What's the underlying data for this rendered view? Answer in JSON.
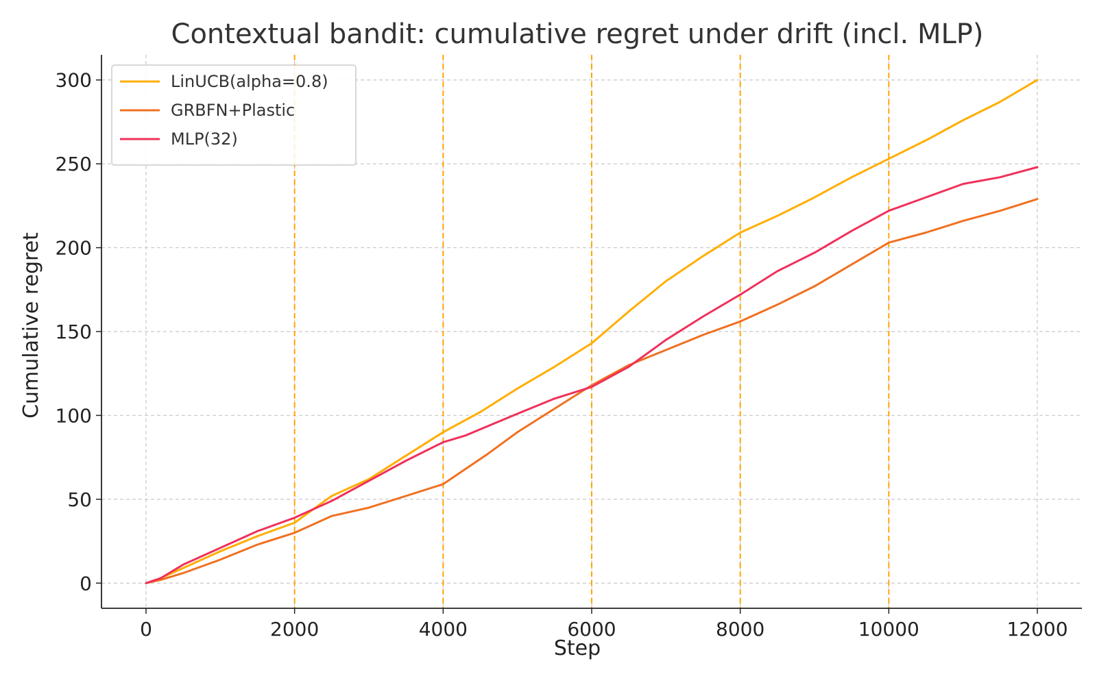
{
  "chart_data": {
    "type": "line",
    "title": "Contextual bandit: cumulative regret under drift (incl. MLP)",
    "xlabel": "Step",
    "ylabel": "Cumulative regret",
    "xlim": [
      -600,
      12600
    ],
    "ylim": [
      -15,
      315
    ],
    "xticks": [
      0,
      2000,
      4000,
      6000,
      8000,
      10000,
      12000
    ],
    "yticks": [
      0,
      50,
      100,
      150,
      200,
      250,
      300
    ],
    "grid": true,
    "legend_position": "top-left",
    "vlines": [
      2000,
      4000,
      6000,
      8000,
      10000
    ],
    "vline_color": "#ffa500",
    "series": [
      {
        "name": "LinUCB(alpha=0.8)",
        "color": "#ffae00",
        "points": [
          [
            0,
            0
          ],
          [
            200,
            3
          ],
          [
            500,
            9
          ],
          [
            1000,
            19
          ],
          [
            1500,
            28
          ],
          [
            2000,
            36
          ],
          [
            2500,
            52
          ],
          [
            3000,
            62
          ],
          [
            3500,
            76
          ],
          [
            4000,
            90
          ],
          [
            4500,
            102
          ],
          [
            5000,
            116
          ],
          [
            5500,
            129
          ],
          [
            6000,
            143
          ],
          [
            6500,
            162
          ],
          [
            7000,
            180
          ],
          [
            7500,
            195
          ],
          [
            8000,
            209
          ],
          [
            8500,
            219
          ],
          [
            9000,
            230
          ],
          [
            9500,
            242
          ],
          [
            10000,
            253
          ],
          [
            10500,
            264
          ],
          [
            11000,
            276
          ],
          [
            11500,
            287
          ],
          [
            12000,
            300
          ]
        ]
      },
      {
        "name": "GRBFN+Plastic",
        "color": "#f07020",
        "points": [
          [
            0,
            0
          ],
          [
            200,
            2
          ],
          [
            500,
            6
          ],
          [
            1000,
            14
          ],
          [
            1500,
            23
          ],
          [
            2000,
            30
          ],
          [
            2500,
            40
          ],
          [
            3000,
            45
          ],
          [
            3500,
            52
          ],
          [
            4000,
            59
          ],
          [
            4300,
            68
          ],
          [
            4600,
            77
          ],
          [
            5000,
            90
          ],
          [
            5500,
            104
          ],
          [
            6000,
            118
          ],
          [
            6500,
            130
          ],
          [
            7000,
            139
          ],
          [
            7500,
            148
          ],
          [
            8000,
            156
          ],
          [
            8500,
            166
          ],
          [
            9000,
            177
          ],
          [
            9500,
            190
          ],
          [
            10000,
            203
          ],
          [
            10500,
            209
          ],
          [
            11000,
            216
          ],
          [
            11500,
            222
          ],
          [
            12000,
            229
          ]
        ]
      },
      {
        "name": "MLP(32)",
        "color": "#f0305a",
        "points": [
          [
            0,
            0
          ],
          [
            200,
            3
          ],
          [
            500,
            11
          ],
          [
            1000,
            21
          ],
          [
            1500,
            31
          ],
          [
            2000,
            39
          ],
          [
            2500,
            49
          ],
          [
            3000,
            61
          ],
          [
            3500,
            73
          ],
          [
            4000,
            84
          ],
          [
            4300,
            88
          ],
          [
            5000,
            101
          ],
          [
            5500,
            110
          ],
          [
            6000,
            117
          ],
          [
            6500,
            129
          ],
          [
            7000,
            145
          ],
          [
            7500,
            159
          ],
          [
            8000,
            172
          ],
          [
            8500,
            186
          ],
          [
            9000,
            197
          ],
          [
            9500,
            210
          ],
          [
            10000,
            222
          ],
          [
            10500,
            230
          ],
          [
            11000,
            238
          ],
          [
            11500,
            242
          ],
          [
            12000,
            248
          ]
        ]
      }
    ]
  }
}
